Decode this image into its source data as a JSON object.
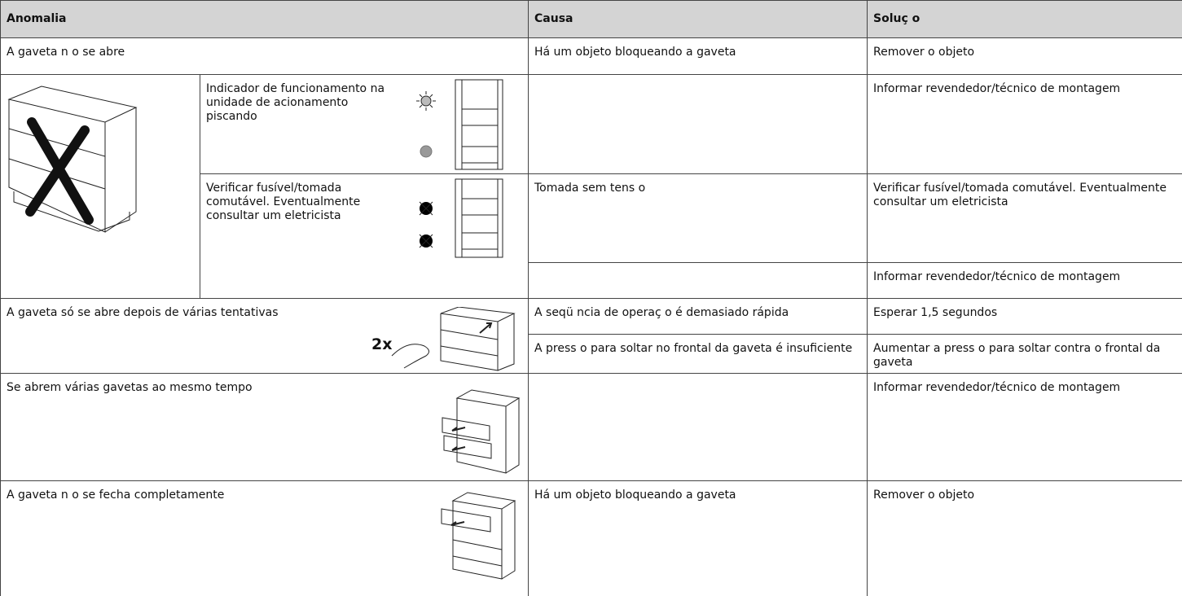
{
  "table": {
    "header": [
      "Anomalia",
      "Causa",
      "Soluç o"
    ],
    "rows": [
      {
        "anomalia": "A gaveta n o se abre",
        "causa": "Há um objeto bloqueando a gaveta",
        "solucao": "Remover o objeto"
      },
      {
        "detalhe": "Indicador de funcionamento na unidade de acionamento piscando",
        "solucao": "Informar revendedor/técnico de montagem"
      },
      {
        "detalhe": "Verificar fusível/tomada comutável. Eventualmente consultar um eletricista",
        "causa": "Tomada sem tens o",
        "solucao": "Verificar fusível/tomada comutável. Eventualmente consultar um eletricista"
      },
      {
        "solucao": "Informar revendedor/técnico de montagem"
      },
      {
        "anomalia": "A gaveta só se abre depois de várias tentativas",
        "figura": "2x",
        "causa": "A seqü ncia de operaç o é demasiado rápida",
        "solucao": "Esperar 1,5 segundos"
      },
      {
        "causa": "A press o para soltar no frontal da gaveta é insuficiente",
        "solucao": "Aumentar a press o para soltar contra o frontal da gaveta"
      },
      {
        "anomalia": "Se abrem várias gavetas ao mesmo tempo",
        "solucao": "Informar revendedor/técnico de montagem"
      },
      {
        "anomalia": "A gaveta n o se fecha completamente",
        "causa": "Há um objeto bloqueando a gaveta",
        "solucao": "Remover o objeto"
      }
    ]
  }
}
